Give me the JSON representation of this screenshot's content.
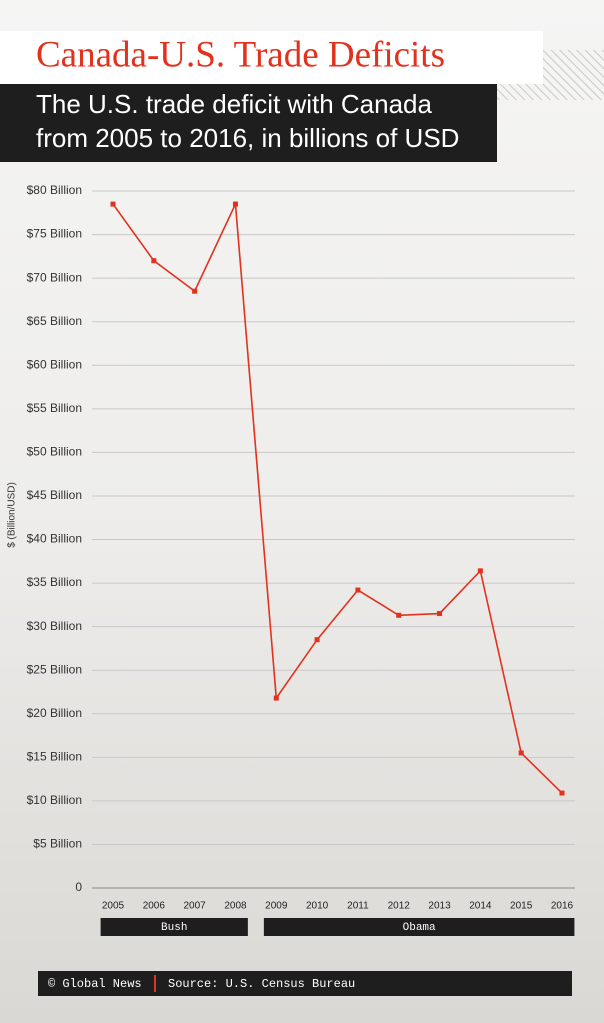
{
  "chart_data": {
    "type": "line",
    "title": "Canada-U.S. Trade Deficits",
    "subtitle": [
      "The U.S. trade deficit with Canada",
      "from 2005 to 2016, in billions of USD"
    ],
    "y_label": "$ (Billion/USD)",
    "categories": [
      "2005",
      "2006",
      "2007",
      "2008",
      "2009",
      "2010",
      "2011",
      "2012",
      "2013",
      "2014",
      "2015",
      "2016"
    ],
    "values": [
      78.5,
      72,
      68.5,
      78.5,
      21.8,
      28.5,
      34.2,
      31.3,
      31.5,
      36.4,
      15.5,
      10.9
    ],
    "color": "#e2311d",
    "ylim": [
      0,
      80
    ],
    "yticks": [
      0,
      {
        "value": 5,
        "label": "$5 Billion"
      },
      {
        "value": 10,
        "label": "$10 Billion"
      },
      {
        "value": 15,
        "label": "$15 Billion"
      },
      {
        "value": 20,
        "label": "$20 Billion"
      },
      {
        "value": 25,
        "label": "$25 Billion"
      },
      {
        "value": 30,
        "label": "$30 Billion"
      },
      {
        "value": 35,
        "label": "$35 Billion"
      },
      {
        "value": 40,
        "label": "$40 Billion"
      },
      {
        "value": 45,
        "label": "$45 Billion"
      },
      {
        "value": 50,
        "label": "$50 Billion"
      },
      {
        "value": 55,
        "label": "$55 Billion"
      },
      {
        "value": 60,
        "label": "$60 Billion"
      },
      {
        "value": 65,
        "label": "$65 Billion"
      },
      {
        "value": 70,
        "label": "$70 Billion"
      },
      {
        "value": 75,
        "label": "$75 Billion"
      },
      {
        "value": 80,
        "label": "$80 Billion"
      }
    ],
    "grid": true,
    "groups": [
      {
        "label": "Bush",
        "from": "2005",
        "to": "2008"
      },
      {
        "label": "Obama",
        "from": "2009",
        "to": "2016"
      }
    ],
    "credit": "© Global News",
    "source": "Source: U.S. Census Bureau"
  }
}
